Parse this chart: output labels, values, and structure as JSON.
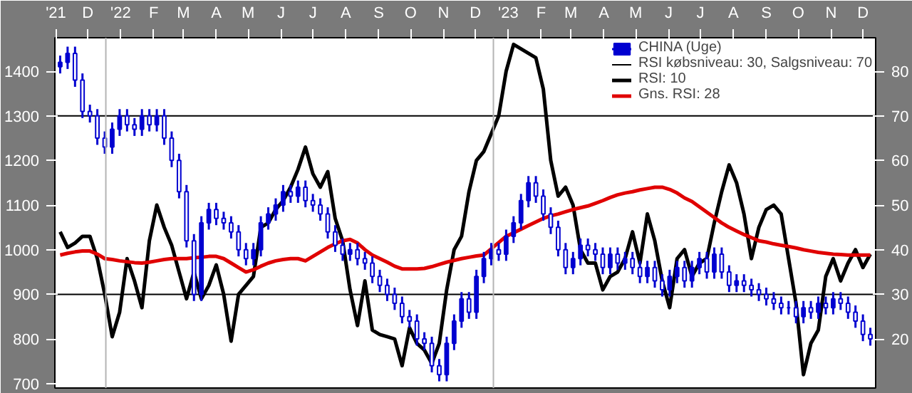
{
  "chart_data": {
    "type": "candlestick",
    "x": [
      "2021-11-19",
      "2021-11-26",
      "2021-12-03",
      "2021-12-10",
      "2021-12-17",
      "2021-12-24",
      "2021-12-31",
      "2022-01-07",
      "2022-01-14",
      "2022-01-21",
      "2022-01-28",
      "2022-02-04",
      "2022-02-11",
      "2022-02-18",
      "2022-02-25",
      "2022-03-04",
      "2022-03-11",
      "2022-03-18",
      "2022-03-25",
      "2022-04-01",
      "2022-04-08",
      "2022-04-15",
      "2022-04-22",
      "2022-04-29",
      "2022-05-06",
      "2022-05-13",
      "2022-05-20",
      "2022-05-27",
      "2022-06-03",
      "2022-06-10",
      "2022-06-17",
      "2022-06-24",
      "2022-07-01",
      "2022-07-08",
      "2022-07-15",
      "2022-07-22",
      "2022-07-29",
      "2022-08-05",
      "2022-08-12",
      "2022-08-19",
      "2022-08-26",
      "2022-09-02",
      "2022-09-09",
      "2022-09-16",
      "2022-09-23",
      "2022-09-30",
      "2022-10-07",
      "2022-10-14",
      "2022-10-21",
      "2022-10-28",
      "2022-11-04",
      "2022-11-11",
      "2022-11-18",
      "2022-11-25",
      "2022-12-02",
      "2022-12-09",
      "2022-12-16",
      "2022-12-23",
      "2022-12-30",
      "2023-01-06",
      "2023-01-13",
      "2023-01-20",
      "2023-01-27",
      "2023-02-03",
      "2023-02-10",
      "2023-02-17",
      "2023-02-24",
      "2023-03-03",
      "2023-03-10",
      "2023-03-17",
      "2023-03-24",
      "2023-03-31",
      "2023-04-07",
      "2023-04-14",
      "2023-04-21",
      "2023-04-28",
      "2023-05-05",
      "2023-05-12",
      "2023-05-19",
      "2023-05-26",
      "2023-06-02",
      "2023-06-09",
      "2023-06-16",
      "2023-06-23",
      "2023-06-30",
      "2023-07-07",
      "2023-07-14",
      "2023-07-21",
      "2023-07-28",
      "2023-08-04",
      "2023-08-11",
      "2023-08-18",
      "2023-08-25",
      "2023-09-01",
      "2023-09-08",
      "2023-09-15",
      "2023-09-22",
      "2023-09-29",
      "2023-10-06",
      "2023-10-13",
      "2023-10-20",
      "2023-10-27",
      "2023-11-03",
      "2023-11-10",
      "2023-11-17",
      "2023-11-24",
      "2023-12-01",
      "2023-12-08",
      "2023-12-15",
      "2023-12-22"
    ],
    "xlim": [
      "2021-11-14",
      "2023-12-27"
    ],
    "xticks": [
      {
        "value": "2021-11-15",
        "label": "'21"
      },
      {
        "value": "2021-12-15",
        "label": "D"
      },
      {
        "value": "2022-01-15",
        "label": "'22"
      },
      {
        "value": "2022-02-15",
        "label": "F"
      },
      {
        "value": "2022-03-15",
        "label": "M"
      },
      {
        "value": "2022-04-15",
        "label": "A"
      },
      {
        "value": "2022-05-15",
        "label": "M"
      },
      {
        "value": "2022-06-15",
        "label": "J"
      },
      {
        "value": "2022-07-15",
        "label": "J"
      },
      {
        "value": "2022-08-15",
        "label": "A"
      },
      {
        "value": "2022-09-15",
        "label": "S"
      },
      {
        "value": "2022-10-15",
        "label": "O"
      },
      {
        "value": "2022-11-15",
        "label": "N"
      },
      {
        "value": "2022-12-15",
        "label": "D"
      },
      {
        "value": "2023-01-15",
        "label": "'23"
      },
      {
        "value": "2023-02-15",
        "label": "F"
      },
      {
        "value": "2023-03-15",
        "label": "M"
      },
      {
        "value": "2023-04-15",
        "label": "A"
      },
      {
        "value": "2023-05-15",
        "label": "M"
      },
      {
        "value": "2023-06-15",
        "label": "J"
      },
      {
        "value": "2023-07-15",
        "label": "J"
      },
      {
        "value": "2023-08-15",
        "label": "A"
      },
      {
        "value": "2023-09-15",
        "label": "S"
      },
      {
        "value": "2023-10-15",
        "label": "O"
      },
      {
        "value": "2023-11-15",
        "label": "N"
      },
      {
        "value": "2023-12-15",
        "label": "D"
      }
    ],
    "ylim": [
      690,
      1475
    ],
    "yticks": [
      700,
      800,
      900,
      1000,
      1100,
      1200,
      1300,
      1400
    ],
    "y2lim": [
      9,
      87.5
    ],
    "y2ticks": [
      20,
      30,
      40,
      50,
      60,
      70,
      80
    ],
    "grid": false,
    "legend": "top right",
    "ref_lines": [
      {
        "axis": "y2",
        "value": 30,
        "label": "RSI købsniveau: 30, Salgsniveau: 70",
        "color": "#000000"
      },
      {
        "axis": "y2",
        "value": 70,
        "color": "#000000"
      },
      {
        "axis": "x",
        "value": "2022-01-01",
        "color": "#b4b4b4"
      },
      {
        "axis": "x",
        "value": "2023-01-01",
        "color": "#b4b4b4"
      }
    ],
    "series": [
      {
        "name": "CHINA (Uge)",
        "color": "#0000d0",
        "ohlc": [
          [
            1410,
            1435,
            1395,
            1420
          ],
          [
            1420,
            1455,
            1405,
            1440
          ],
          [
            1440,
            1455,
            1365,
            1380
          ],
          [
            1380,
            1395,
            1295,
            1310
          ],
          [
            1310,
            1325,
            1285,
            1300
          ],
          [
            1300,
            1315,
            1235,
            1250
          ],
          [
            1250,
            1265,
            1215,
            1230
          ],
          [
            1230,
            1285,
            1215,
            1270
          ],
          [
            1270,
            1315,
            1255,
            1300
          ],
          [
            1300,
            1315,
            1265,
            1280
          ],
          [
            1280,
            1295,
            1255,
            1270
          ],
          [
            1270,
            1315,
            1255,
            1300
          ],
          [
            1300,
            1315,
            1265,
            1280
          ],
          [
            1280,
            1315,
            1265,
            1300
          ],
          [
            1300,
            1315,
            1235,
            1250
          ],
          [
            1250,
            1265,
            1185,
            1200
          ],
          [
            1200,
            1215,
            1115,
            1130
          ],
          [
            1130,
            1145,
            1005,
            1020
          ],
          [
            1020,
            1035,
            885,
            900
          ],
          [
            900,
            1075,
            885,
            1060
          ],
          [
            1060,
            1105,
            1045,
            1090
          ],
          [
            1090,
            1105,
            1055,
            1070
          ],
          [
            1070,
            1085,
            1045,
            1060
          ],
          [
            1060,
            1075,
            1025,
            1040
          ],
          [
            1040,
            1055,
            985,
            1000
          ],
          [
            1000,
            1015,
            965,
            980
          ],
          [
            980,
            1015,
            965,
            1000
          ],
          [
            1000,
            1075,
            985,
            1060
          ],
          [
            1060,
            1095,
            1045,
            1080
          ],
          [
            1080,
            1115,
            1065,
            1100
          ],
          [
            1100,
            1145,
            1085,
            1130
          ],
          [
            1130,
            1145,
            1105,
            1120
          ],
          [
            1120,
            1155,
            1105,
            1140
          ],
          [
            1140,
            1155,
            1095,
            1110
          ],
          [
            1110,
            1125,
            1085,
            1100
          ],
          [
            1100,
            1115,
            1065,
            1080
          ],
          [
            1080,
            1095,
            1025,
            1040
          ],
          [
            1040,
            1055,
            995,
            1010
          ],
          [
            1010,
            1025,
            975,
            990
          ],
          [
            990,
            1015,
            975,
            1000
          ],
          [
            1000,
            1015,
            965,
            980
          ],
          [
            980,
            995,
            955,
            970
          ],
          [
            970,
            985,
            925,
            940
          ],
          [
            940,
            955,
            905,
            920
          ],
          [
            920,
            935,
            885,
            900
          ],
          [
            900,
            915,
            865,
            880
          ],
          [
            880,
            895,
            835,
            850
          ],
          [
            850,
            865,
            825,
            840
          ],
          [
            840,
            855,
            785,
            800
          ],
          [
            800,
            815,
            775,
            790
          ],
          [
            790,
            805,
            725,
            740
          ],
          [
            740,
            755,
            705,
            720
          ],
          [
            720,
            805,
            705,
            790
          ],
          [
            790,
            855,
            775,
            840
          ],
          [
            840,
            905,
            825,
            890
          ],
          [
            890,
            905,
            845,
            860
          ],
          [
            860,
            955,
            845,
            940
          ],
          [
            940,
            995,
            925,
            980
          ],
          [
            980,
            1015,
            965,
            1000
          ],
          [
            1000,
            1015,
            975,
            990
          ],
          [
            990,
            1045,
            975,
            1030
          ],
          [
            1030,
            1075,
            1015,
            1060
          ],
          [
            1060,
            1125,
            1045,
            1110
          ],
          [
            1110,
            1165,
            1095,
            1150
          ],
          [
            1150,
            1165,
            1105,
            1120
          ],
          [
            1120,
            1135,
            1065,
            1080
          ],
          [
            1080,
            1095,
            1035,
            1050
          ],
          [
            1050,
            1065,
            985,
            1000
          ],
          [
            1000,
            1015,
            945,
            960
          ],
          [
            960,
            995,
            945,
            980
          ],
          [
            980,
            1025,
            965,
            1010
          ],
          [
            1010,
            1025,
            985,
            1000
          ],
          [
            1000,
            1015,
            975,
            990
          ],
          [
            990,
            1005,
            945,
            960
          ],
          [
            960,
            1005,
            945,
            990
          ],
          [
            990,
            1005,
            955,
            970
          ],
          [
            970,
            995,
            955,
            980
          ],
          [
            980,
            995,
            945,
            960
          ],
          [
            960,
            975,
            925,
            940
          ],
          [
            940,
            975,
            925,
            960
          ],
          [
            960,
            975,
            915,
            930
          ],
          [
            930,
            945,
            895,
            910
          ],
          [
            910,
            955,
            895,
            940
          ],
          [
            940,
            975,
            925,
            960
          ],
          [
            960,
            975,
            915,
            930
          ],
          [
            930,
            975,
            915,
            960
          ],
          [
            960,
            995,
            945,
            980
          ],
          [
            980,
            995,
            935,
            950
          ],
          [
            950,
            1005,
            935,
            990
          ],
          [
            990,
            1005,
            935,
            950
          ],
          [
            950,
            965,
            905,
            920
          ],
          [
            920,
            945,
            905,
            930
          ],
          [
            930,
            945,
            905,
            920
          ],
          [
            920,
            935,
            895,
            910
          ],
          [
            910,
            925,
            885,
            900
          ],
          [
            900,
            915,
            875,
            890
          ],
          [
            890,
            905,
            865,
            880
          ],
          [
            880,
            895,
            855,
            870
          ],
          [
            870,
            885,
            855,
            870
          ],
          [
            870,
            885,
            835,
            850
          ],
          [
            850,
            885,
            835,
            870
          ],
          [
            870,
            885,
            845,
            860
          ],
          [
            860,
            895,
            845,
            880
          ],
          [
            880,
            895,
            855,
            870
          ],
          [
            870,
            905,
            855,
            890
          ],
          [
            890,
            905,
            865,
            880
          ],
          [
            880,
            895,
            845,
            860
          ],
          [
            860,
            875,
            825,
            840
          ],
          [
            840,
            855,
            795,
            810
          ],
          [
            810,
            825,
            785,
            800
          ]
        ]
      },
      {
        "name": "RSI: 10",
        "type": "line",
        "axis": "y2",
        "color": "#000000",
        "values": [
          44,
          40.5,
          41.5,
          43,
          43,
          38,
          30,
          20.5,
          26,
          38,
          33,
          27,
          42,
          50,
          45,
          41,
          35,
          29,
          35,
          29,
          32,
          36.6,
          30,
          19.5,
          30,
          32,
          34,
          45,
          46,
          49,
          51,
          54,
          58,
          63,
          57,
          54,
          57.5,
          47,
          42,
          31,
          23,
          33,
          22,
          21,
          20.5,
          20,
          14,
          22.5,
          19,
          17.5,
          14.5,
          19,
          31,
          40,
          43,
          53,
          60,
          62,
          66,
          70,
          80,
          86,
          85,
          84,
          83,
          76,
          60,
          52,
          54,
          50,
          40,
          37,
          37,
          31,
          34,
          35,
          38,
          44,
          37,
          48,
          42,
          33,
          27,
          38,
          40,
          34,
          37,
          38,
          46,
          53,
          59,
          55,
          48,
          38,
          45,
          49,
          50,
          48,
          38,
          28,
          12,
          19,
          22,
          34,
          38,
          33,
          37,
          40,
          36,
          39
        ]
      },
      {
        "name": "Gns. RSI: 28",
        "type": "line",
        "axis": "y2",
        "color": "#e00000",
        "values": [
          38.8,
          39.2,
          39.5,
          39.7,
          39.7,
          39,
          38,
          37.8,
          37.5,
          37.3,
          37.1,
          37,
          37.2,
          37.5,
          37.8,
          38,
          38,
          38,
          38.2,
          38.3,
          38.5,
          38.5,
          38,
          37,
          36,
          35,
          35.5,
          36.3,
          37,
          37.5,
          37.8,
          38,
          38,
          37.5,
          38.5,
          39.5,
          40.5,
          41.3,
          42,
          42.3,
          41.5,
          40,
          38.8,
          38,
          37.2,
          36.3,
          35.7,
          35.7,
          35.7,
          35.8,
          36.2,
          36.7,
          37.2,
          37.6,
          38,
          38.3,
          38.6,
          38.8,
          40.2,
          41.6,
          43,
          43.8,
          44.6,
          45.4,
          46.2,
          47,
          47.6,
          48,
          48.5,
          49,
          49.4,
          49.8,
          50.4,
          51,
          51.7,
          52.3,
          52.7,
          53,
          53.4,
          53.7,
          54,
          54,
          53.5,
          52.7,
          51.6,
          50.8,
          49.6,
          48.4,
          47.2,
          46,
          45,
          44.2,
          43.4,
          42.7,
          42,
          41.7,
          41.3,
          41,
          40.7,
          40.4,
          40,
          39.7,
          39.4,
          39.2,
          39,
          38.9,
          38.8,
          38.8,
          38.8,
          38.8
        ]
      }
    ]
  }
}
